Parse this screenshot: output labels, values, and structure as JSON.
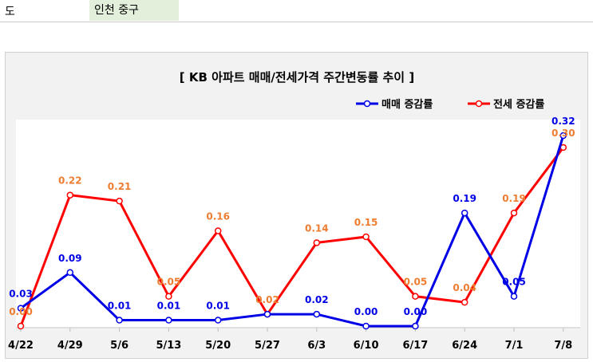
{
  "sheet": {
    "label": "도",
    "value": "인천 중구"
  },
  "chart_data": {
    "type": "line",
    "title": "[ KB 아파트 매매/전세가격 주간변동률 추이 ]",
    "categories": [
      "4/22",
      "4/29",
      "5/6",
      "5/13",
      "5/20",
      "5/27",
      "6/3",
      "6/10",
      "6/17",
      "6/24",
      "7/1",
      "7/8"
    ],
    "series": [
      {
        "name": "매매 증감률",
        "color": "#0000e6",
        "values": [
          0.03,
          0.09,
          0.01,
          0.01,
          0.01,
          0.02,
          0.02,
          0.0,
          0.0,
          0.19,
          0.05,
          0.32
        ],
        "labels": [
          "0.03",
          "0.09",
          "0.01",
          "0.01",
          "0.01",
          "",
          "0.02",
          "0.00",
          "0.00",
          "0.19",
          "0.05",
          "0.32"
        ]
      },
      {
        "name": "전세 증감률",
        "color": "#ff0000",
        "values": [
          0.0,
          0.22,
          0.21,
          0.05,
          0.16,
          0.02,
          0.14,
          0.15,
          0.05,
          0.04,
          0.19,
          0.3
        ],
        "labels": [
          "0.00",
          "0.22",
          "0.21",
          "0.05",
          "0.16",
          "0.02",
          "0.14",
          "0.15",
          "0.05",
          "0.04",
          "0.19",
          "0.30"
        ]
      }
    ],
    "ylim": [
      0,
      0.32
    ],
    "grid": false,
    "legend": "top-right",
    "label_colors": {
      "sale": "#0000e6",
      "jeonse": "#ed7d31"
    }
  }
}
